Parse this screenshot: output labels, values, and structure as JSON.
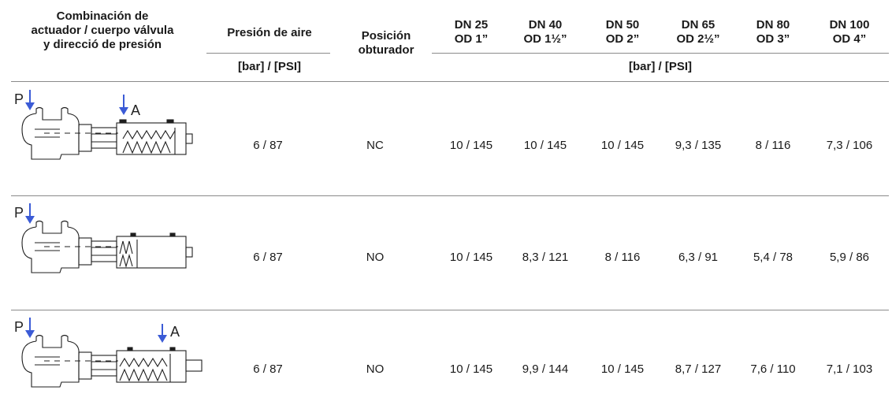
{
  "header": {
    "combination": [
      "Combinación de",
      "actuador / cuerpo válvula",
      "y direcció de presión"
    ],
    "air_pressure": "Presión de aire",
    "air_pressure_unit": "[bar] / [PSI]",
    "shutter_position": [
      "Posición",
      "obturador"
    ],
    "sizes": [
      {
        "dn": "DN 25",
        "od": "OD 1”"
      },
      {
        "dn": "DN 40",
        "od": "OD 1½”"
      },
      {
        "dn": "DN 50",
        "od": "OD 2”"
      },
      {
        "dn": "DN 65",
        "od": "OD 2½”"
      },
      {
        "dn": "DN 80",
        "od": "OD 3”"
      },
      {
        "dn": "DN 100",
        "od": "OD 4”"
      }
    ],
    "sizes_unit": "[bar] / [PSI]"
  },
  "diagram_labels": {
    "p": "P",
    "a": "A"
  },
  "rows": [
    {
      "air": "6 / 87",
      "position": "NC",
      "values": [
        "10 / 145",
        "10 / 145",
        "10 / 145",
        "9,3 / 135",
        "8 / 116",
        "7,3 / 106"
      ]
    },
    {
      "air": "6 / 87",
      "position": "NO",
      "values": [
        "10 / 145",
        "8,3 / 121",
        "8 / 116",
        "6,3 / 91",
        "5,4 / 78",
        "5,9 / 86"
      ]
    },
    {
      "air": "6 / 87",
      "position": "NO",
      "values": [
        "10 / 145",
        "9,9 / 144",
        "10 / 145",
        "8,7 / 127",
        "7,6 / 110",
        "7,1 / 103"
      ]
    }
  ]
}
